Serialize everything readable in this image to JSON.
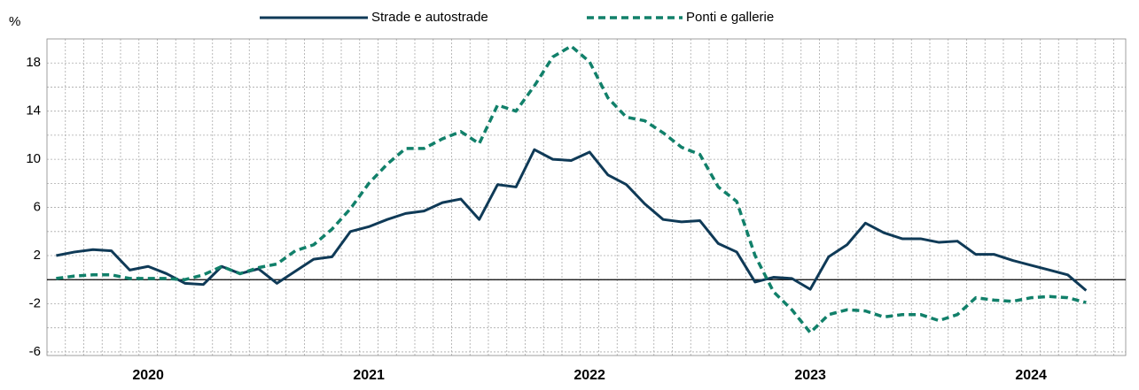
{
  "chart_data": {
    "type": "line",
    "y_unit": "%",
    "categories": [
      null,
      null,
      null,
      null,
      null,
      "2020",
      null,
      null,
      null,
      null,
      null,
      null,
      null,
      null,
      null,
      null,
      null,
      "2021",
      null,
      null,
      null,
      null,
      null,
      null,
      null,
      null,
      null,
      null,
      null,
      "2022",
      null,
      null,
      null,
      null,
      null,
      null,
      null,
      null,
      null,
      null,
      null,
      "2023",
      null,
      null,
      null,
      null,
      null,
      null,
      null,
      null,
      null,
      null,
      null,
      "2024",
      null,
      null,
      null
    ],
    "series": [
      {
        "name": "Strade e autostrade",
        "color": "#0f3a57",
        "dash": false,
        "values": [
          2.0,
          2.3,
          2.5,
          2.4,
          0.8,
          1.1,
          0.5,
          -0.3,
          -0.4,
          1.1,
          0.5,
          0.9,
          -0.3,
          0.7,
          1.7,
          1.9,
          4.0,
          4.4,
          5.0,
          5.5,
          5.7,
          6.4,
          6.7,
          5.0,
          7.9,
          7.7,
          10.8,
          10.0,
          9.9,
          10.6,
          8.7,
          7.9,
          6.3,
          5.0,
          4.8,
          4.9,
          3.0,
          2.3,
          -0.2,
          0.2,
          0.1,
          -0.8,
          1.9,
          2.9,
          4.7,
          3.9,
          3.4,
          3.4,
          3.1,
          3.2,
          2.1,
          2.1,
          1.6,
          1.2,
          0.8,
          0.4,
          -0.9
        ]
      },
      {
        "name": "Ponti e gallerie",
        "color": "#11806a",
        "dash": true,
        "values": [
          0.1,
          0.3,
          0.4,
          0.4,
          0.1,
          0.1,
          0.1,
          0.0,
          0.4,
          1.1,
          0.5,
          1.0,
          1.3,
          2.4,
          2.9,
          4.2,
          5.9,
          8.0,
          9.6,
          10.9,
          10.9,
          11.7,
          12.3,
          11.3,
          14.5,
          14.0,
          16.1,
          18.5,
          19.4,
          18.1,
          15.1,
          13.5,
          13.2,
          12.2,
          11.0,
          10.4,
          7.7,
          6.5,
          2.0,
          -1.0,
          -2.5,
          -4.4,
          -2.9,
          -2.5,
          -2.6,
          -3.1,
          -2.9,
          -2.9,
          -3.4,
          -2.9,
          -1.5,
          -1.7,
          -1.8,
          -1.5,
          -1.4,
          -1.5,
          -1.9
        ]
      }
    ],
    "ylim": [
      -6.3,
      20
    ],
    "yticks": [
      -6,
      -2,
      2,
      6,
      10,
      14,
      18
    ],
    "grid": true,
    "legend": "top"
  }
}
